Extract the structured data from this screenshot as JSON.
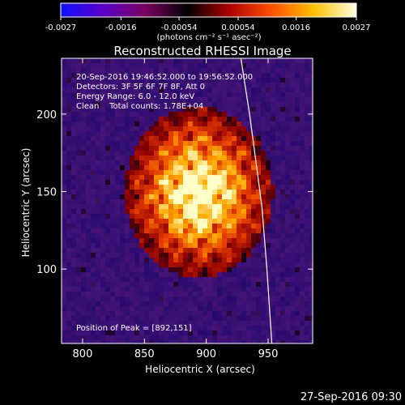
{
  "colorbar": {
    "ticks": [
      "-0.0027",
      "-0.0016",
      "-0.00054",
      "0.00054",
      "0.0016",
      "0.0027"
    ],
    "tick_values": [
      -0.0027,
      -0.0016,
      -0.00054,
      0.00054,
      0.0016,
      0.0027
    ],
    "range": [
      -0.0027,
      0.0027
    ],
    "units_label": "(photons cm⁻² s⁻¹ asec⁻²)",
    "colors": [
      "#1010ff",
      "#5a00c8",
      "#7a0060",
      "#000000",
      "#b00000",
      "#ff5000",
      "#ffc000",
      "#ffffe0"
    ]
  },
  "chart_data": {
    "type": "heatmap",
    "title": "Reconstructed RHESSI Image",
    "xlabel": "Heliocentric X (arcsec)",
    "ylabel": "Heliocentric Y (arcsec)",
    "xlim": [
      783,
      986
    ],
    "ylim": [
      52,
      236
    ],
    "xticks": [
      800,
      850,
      900,
      950
    ],
    "yticks": [
      100,
      150,
      200
    ],
    "peak": {
      "x": 892,
      "y": 151
    },
    "limb_curve": [
      [
        928,
        236
      ],
      [
        935,
        200
      ],
      [
        940,
        170
      ],
      [
        945,
        140
      ],
      [
        949,
        100
      ],
      [
        953,
        52
      ]
    ],
    "annotations": {
      "line1": "20-Sep-2016 19:46:52.000 to 19:56:52.000",
      "line2": "Detectors: 3F 5F 6F 7F 8F, Att 0",
      "line3": "Energy Range: 6.0 - 12.0 keV",
      "line4": "Clean    Total counts: 1.78E+04",
      "peak_label": "Position of Peak = [892,151]"
    }
  },
  "footer": {
    "timestamp": "27-Sep-2016 09:30"
  }
}
